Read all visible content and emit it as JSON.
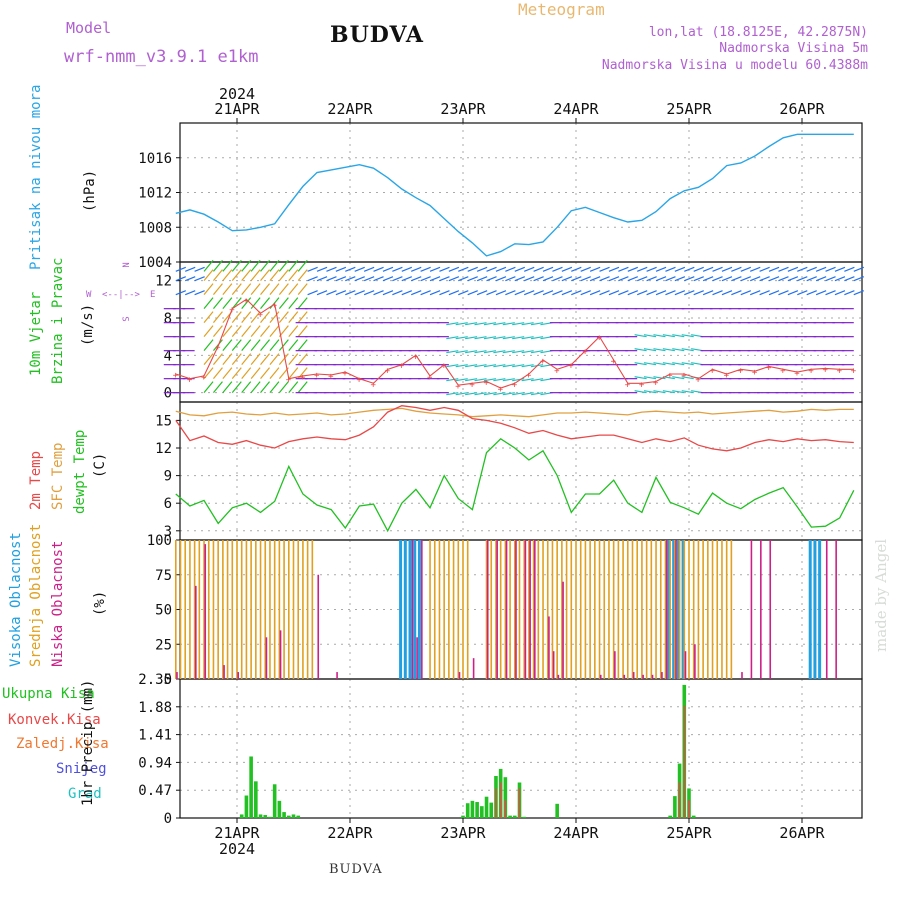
{
  "header": {
    "model_label": "Model",
    "model_name": "wrf-nmm_v3.9.1 e1km",
    "title": "BUDVA",
    "meteogram_label": "Meteogram",
    "lonlat": "lon,lat (18.8125E, 42.2875N)",
    "elevation": "Nadmorska Visina 5m",
    "model_elevation": "Nadmorska Visina u modelu 60.4388m"
  },
  "footer": {
    "station": "BUDVA",
    "credit": "made by Angel"
  },
  "colors": {
    "pressure": "#2aa6e6",
    "temp2m": "#e84848",
    "sfc": "#e0a040",
    "dewpt": "#22c022",
    "high_cloud": "#20a0e0",
    "mid_cloud": "#e0a020",
    "low_cloud": "#cc2088",
    "total": "#22c022",
    "convective": "#e84848",
    "freezing": "#f07830",
    "snow": "#5050e0",
    "graupel": "#20c0c0",
    "wind_purple": "#8020d0",
    "wind_blue": "#2070f0",
    "wind_cyan": "#20c0c0",
    "wind_green": "#22c022",
    "wind_orange": "#e0a020"
  },
  "labels": {
    "pressure": "Pritisak na nivou mora",
    "pressure_unit": "(hPa)",
    "wind1": "10m Vjetar",
    "wind2": "Brzina i Pravac",
    "wind_unit": "(m/s)",
    "t2m": "2m Temp",
    "sfc": "SFC Temp",
    "dewpt": "dewpt Temp",
    "temp_unit": "(C)",
    "high": "Visoka Oblacnost",
    "mid": "Srednja Oblacnost",
    "low": "Niska Oblacnost",
    "cloud_unit": "(%)",
    "total": "Ukupna Kisa",
    "conv": "Konvek.Kisa",
    "frz": "Zaledj.Kisa",
    "snow": "Snijeg",
    "grad": "Grad",
    "precip_unit": "1hr Precip (mm)",
    "compass_n": "N",
    "compass_s": "S",
    "compass_e": "E",
    "compass_w": "W"
  },
  "chart_data": [
    {
      "type": "line",
      "title": "Pritisak na nivou mora",
      "ylabel": "(hPa)",
      "x_ticks": [
        "21APR",
        "22APR",
        "23APR",
        "24APR",
        "25APR",
        "26APR"
      ],
      "year": "2024",
      "ylim": [
        1004,
        1020
      ],
      "y_ticks": [
        1004,
        1008,
        1012,
        1016
      ],
      "series": [
        {
          "name": "Pritisak",
          "x": [
            0,
            3,
            6,
            9,
            12,
            15,
            18,
            21,
            24,
            27,
            30,
            33,
            36,
            39,
            42,
            45,
            48,
            51,
            54,
            57,
            60,
            63,
            66,
            69,
            72,
            75,
            78,
            81,
            84,
            87,
            90,
            93,
            96,
            99,
            102,
            105,
            108,
            111,
            114,
            117,
            120,
            123,
            126,
            129,
            132,
            135,
            138,
            141,
            144
          ],
          "values": [
            1009.6,
            1010.0,
            1009.5,
            1008.6,
            1007.6,
            1007.7,
            1008.0,
            1008.4,
            1010.6,
            1012.7,
            1014.3,
            1014.6,
            1014.9,
            1015.2,
            1014.8,
            1013.7,
            1012.4,
            1011.4,
            1010.5,
            1009.0,
            1007.5,
            1006.2,
            1004.7,
            1005.2,
            1006.1,
            1006.0,
            1006.3,
            1008.0,
            1009.9,
            1010.3,
            1009.7,
            1009.1,
            1008.6,
            1008.8,
            1009.8,
            1011.3,
            1012.2,
            1012.6,
            1013.6,
            1015.1,
            1015.4,
            1016.2,
            1017.3,
            1018.3,
            1018.7,
            1018.7,
            1018.7,
            1018.7,
            1018.7
          ]
        }
      ]
    },
    {
      "type": "scatter",
      "title": "10m Vjetar Brzina i Pravac",
      "ylabel": "(m/s)",
      "ylim": [
        -1,
        14
      ],
      "y_ticks": [
        0,
        4,
        8,
        12
      ],
      "series": [
        {
          "name": "Brzina",
          "x": [
            0,
            3,
            6,
            9,
            12,
            15,
            18,
            21,
            24,
            27,
            30,
            33,
            36,
            39,
            42,
            45,
            48,
            51,
            54,
            57,
            60,
            63,
            66,
            69,
            72,
            75,
            78,
            81,
            84,
            87,
            90,
            93,
            96,
            99,
            102,
            105,
            108,
            111,
            114,
            117,
            120,
            123,
            126,
            129,
            132,
            135,
            138,
            141,
            144
          ],
          "values": [
            2.0,
            1.5,
            1.8,
            5.0,
            9.0,
            10.0,
            8.5,
            9.5,
            1.5,
            1.8,
            2.0,
            1.9,
            2.2,
            1.5,
            1.0,
            2.5,
            3.0,
            4.0,
            1.8,
            3.0,
            0.8,
            1.0,
            1.2,
            0.5,
            1.0,
            2.0,
            3.5,
            2.5,
            3.0,
            4.5,
            6.0,
            3.5,
            1.0,
            1.0,
            1.2,
            2.0,
            2.0,
            1.5,
            2.5,
            2.0,
            2.5,
            2.3,
            2.8,
            2.5,
            2.2,
            2.5,
            2.6,
            2.5,
            2.5
          ]
        }
      ]
    },
    {
      "type": "line",
      "title": "2m Temp / SFC Temp / dewpt Temp",
      "ylabel": "(C)",
      "ylim": [
        2,
        17
      ],
      "y_ticks": [
        3,
        6,
        9,
        12,
        15
      ],
      "series": [
        {
          "name": "SFC Temp",
          "values": [
            16.0,
            15.6,
            15.5,
            15.8,
            15.9,
            15.7,
            15.6,
            15.8,
            15.6,
            15.7,
            15.8,
            15.6,
            15.7,
            15.9,
            16.1,
            16.2,
            16.3,
            16.0,
            15.8,
            15.7,
            15.6,
            15.4,
            15.5,
            15.6,
            15.5,
            15.4,
            15.6,
            15.8,
            15.8,
            15.9,
            15.8,
            15.7,
            15.6,
            15.9,
            16.0,
            15.9,
            15.8,
            15.9,
            15.7,
            15.8,
            15.9,
            16.0,
            16.1,
            15.9,
            16.0,
            16.2,
            16.1,
            16.2,
            16.2
          ]
        },
        {
          "name": "2m Temp",
          "values": [
            15.0,
            12.8,
            13.3,
            12.6,
            12.4,
            12.8,
            12.3,
            12.0,
            12.7,
            13.0,
            13.2,
            13.0,
            12.9,
            13.4,
            14.3,
            15.9,
            16.6,
            16.4,
            16.1,
            16.4,
            16.1,
            15.2,
            15.0,
            14.7,
            14.2,
            13.6,
            13.9,
            13.4,
            13.0,
            13.2,
            13.4,
            13.4,
            13.0,
            12.6,
            13.0,
            12.7,
            13.1,
            12.3,
            11.9,
            11.7,
            12.0,
            12.6,
            12.9,
            12.7,
            13.0,
            12.8,
            12.9,
            12.7,
            12.6
          ]
        },
        {
          "name": "dewpt Temp",
          "values": [
            7.0,
            5.7,
            6.3,
            3.8,
            5.5,
            6.0,
            5.0,
            6.2,
            10.0,
            7.0,
            5.8,
            5.3,
            3.3,
            5.7,
            5.9,
            3.0,
            6.0,
            7.5,
            5.5,
            9.0,
            6.5,
            5.3,
            11.5,
            13.0,
            12.0,
            10.7,
            11.7,
            9.0,
            5.0,
            7.0,
            7.0,
            8.5,
            6.0,
            5.0,
            8.8,
            6.1,
            5.5,
            4.8,
            7.1,
            6.0,
            5.4,
            6.4,
            7.1,
            7.7,
            5.6,
            3.4,
            3.5,
            4.4,
            7.4
          ]
        }
      ]
    },
    {
      "type": "bar",
      "title": "Visoka / Srednja / Niska Oblacnost",
      "ylabel": "(%)",
      "ylim": [
        0,
        100
      ],
      "y_ticks": [
        0,
        25,
        50,
        75,
        100
      ],
      "series": [
        {
          "name": "Visoka Oblacnost",
          "hours": [
            48,
            49,
            50,
            51,
            52,
            105,
            106,
            107,
            108,
            135,
            136,
            137
          ],
          "values": [
            100,
            100,
            100,
            100,
            100,
            100,
            100,
            100,
            100,
            100,
            100,
            100
          ]
        },
        {
          "name": "Srednja Oblacnost",
          "hours": [
            0,
            1,
            2,
            3,
            4,
            5,
            6,
            7,
            8,
            9,
            10,
            11,
            12,
            13,
            14,
            15,
            16,
            17,
            18,
            19,
            20,
            21,
            22,
            23,
            24,
            25,
            26,
            27,
            28,
            29,
            54,
            55,
            56,
            57,
            58,
            59,
            60,
            61,
            62,
            66,
            67,
            68,
            69,
            70,
            71,
            72,
            73,
            74,
            75,
            76,
            77,
            78,
            79,
            80,
            81,
            82,
            83,
            84,
            85,
            86,
            87,
            88,
            89,
            90,
            91,
            92,
            93,
            94,
            95,
            96,
            97,
            98,
            99,
            100,
            101,
            102,
            103,
            104,
            105,
            106,
            107,
            108,
            109,
            110,
            111,
            112,
            113,
            114,
            115,
            116,
            117,
            118
          ],
          "values": [
            100,
            100,
            100,
            100,
            100,
            100,
            100,
            100,
            100,
            100,
            100,
            100,
            100,
            100,
            100,
            100,
            100,
            100,
            100,
            100,
            100,
            100,
            100,
            100,
            100,
            100,
            100,
            100,
            100,
            100,
            100,
            100,
            100,
            100,
            100,
            100,
            100,
            100,
            100,
            100,
            100,
            100,
            100,
            100,
            100,
            100,
            100,
            100,
            100,
            100,
            100,
            100,
            100,
            100,
            100,
            100,
            100,
            100,
            100,
            100,
            100,
            100,
            100,
            100,
            100,
            100,
            100,
            100,
            100,
            100,
            100,
            100,
            100,
            100,
            100,
            100,
            100,
            100,
            100,
            100,
            100,
            100,
            100,
            100,
            100,
            100,
            100,
            100,
            100,
            100,
            100,
            100
          ]
        },
        {
          "name": "Niska Oblacnost",
          "hours": [
            0,
            4,
            6,
            10,
            13,
            19,
            22,
            30,
            34,
            50,
            51,
            52,
            60,
            63,
            66,
            68,
            70,
            72,
            74,
            75,
            76,
            79,
            80,
            81,
            82,
            90,
            93,
            95,
            97,
            99,
            101,
            103,
            104,
            106,
            108,
            110,
            120,
            122,
            124,
            126,
            138,
            140
          ],
          "values": [
            5,
            67,
            97,
            10,
            5,
            30,
            35,
            75,
            5,
            100,
            30,
            100,
            5,
            15,
            100,
            100,
            100,
            100,
            100,
            100,
            100,
            45,
            20,
            3,
            70,
            3,
            20,
            3,
            5,
            3,
            3,
            5,
            100,
            100,
            20,
            25,
            5,
            100,
            100,
            100,
            100,
            100
          ]
        }
      ]
    },
    {
      "type": "bar",
      "title": "1hr Precip",
      "ylabel": "1hr Precip (mm)",
      "ylim": [
        0,
        2.35
      ],
      "y_ticks": [
        0,
        0.47,
        0.94,
        1.41,
        1.88,
        2.35
      ],
      "series": [
        {
          "name": "Ukupna Kisa",
          "hours": [
            14,
            15,
            16,
            17,
            18,
            19,
            20,
            21,
            22,
            23,
            24,
            25,
            26,
            61,
            62,
            63,
            64,
            65,
            66,
            67,
            68,
            69,
            70,
            71,
            72,
            73,
            74,
            81,
            105,
            106,
            107,
            108,
            109,
            110
          ],
          "values": [
            0.06,
            0.38,
            1.04,
            0.62,
            0.06,
            0.05,
            0.02,
            0.57,
            0.29,
            0.1,
            0.04,
            0.06,
            0.04,
            0.04,
            0.25,
            0.29,
            0.27,
            0.2,
            0.36,
            0.26,
            0.71,
            0.83,
            0.69,
            0.04,
            0.04,
            0.6,
            0.02,
            0.24,
            0.04,
            0.37,
            0.92,
            2.25,
            0.5,
            0.04
          ]
        },
        {
          "name": "Konvek.Kisa",
          "hours": [
            68,
            69,
            70,
            73,
            107,
            108,
            109
          ],
          "values": [
            0.5,
            0.6,
            0.3,
            0.5,
            0.6,
            1.9,
            0.3
          ]
        },
        {
          "name": "Zaledj.Kisa",
          "hours": [],
          "values": []
        },
        {
          "name": "Snijeg",
          "hours": [],
          "values": []
        },
        {
          "name": "Grad",
          "hours": [],
          "values": []
        }
      ]
    }
  ]
}
